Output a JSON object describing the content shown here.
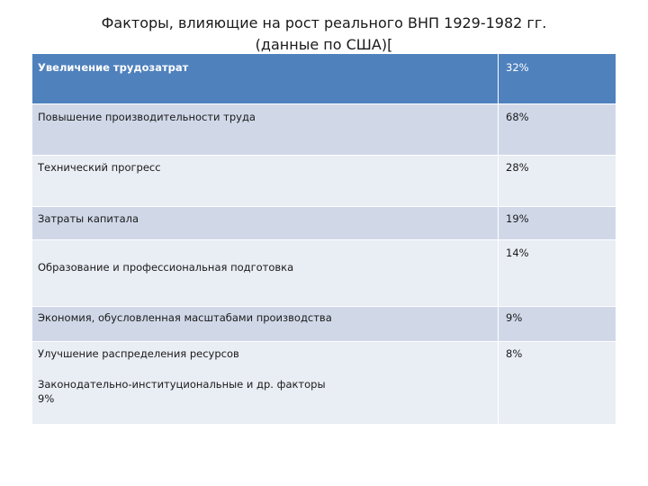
{
  "title": {
    "line1": "Факторы, влияющие на рост реального ВНП 1929-1982 гг.",
    "line2": "(данные по США)["
  },
  "table": {
    "header": {
      "label": "Увеличение трудозатрат",
      "value": "32%"
    },
    "rows": [
      {
        "label": "Повышение производительности труда",
        "value": "68%"
      },
      {
        "label": "Технический прогресс",
        "value": "28%"
      },
      {
        "label": "Затраты капитала",
        "value": "19%"
      },
      {
        "label": "Образование и профессиональная подготовка",
        "value": "14%"
      },
      {
        "label": "Экономия, обусловленная масштабами производства",
        "value": "9%"
      },
      {
        "label": "Улучшение распределения ресурсов",
        "value": "8%"
      }
    ],
    "extra": {
      "line1": "Законодательно-институциональные и др. факторы",
      "line2": "9%"
    }
  },
  "colors": {
    "header": "#4f81bd",
    "row_dark": "#d0d8e8",
    "row_light": "#e9edf4"
  }
}
